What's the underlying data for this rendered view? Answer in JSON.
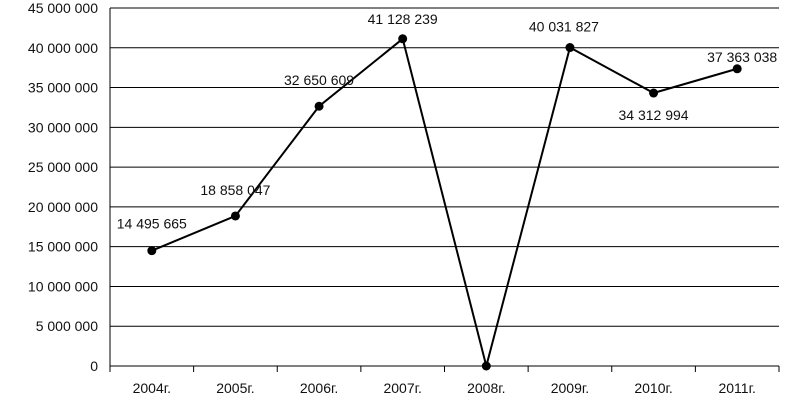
{
  "chart_data": {
    "type": "line",
    "categories": [
      "2004г.",
      "2005г.",
      "2006г.",
      "2007г.",
      "2008г.",
      "2009г.",
      "2010г.",
      "2011г."
    ],
    "values": [
      14495665,
      18858047,
      32650609,
      41128239,
      0,
      40031827,
      34312994,
      37363038
    ],
    "data_labels": [
      "14 495 665",
      "18 858 047",
      "32 650 609",
      "41 128 239",
      "",
      "40 031 827",
      "34 312 994",
      "37 363 038"
    ],
    "y_ticks": [
      0,
      5000000,
      10000000,
      15000000,
      20000000,
      25000000,
      30000000,
      35000000,
      40000000,
      45000000
    ],
    "y_tick_labels": [
      "0",
      "5 000 000",
      "10 000 000",
      "15 000 000",
      "20 000 000",
      "25 000 000",
      "30 000 000",
      "35 000 000",
      "40 000 000",
      "45 000 000"
    ],
    "ylim": [
      0,
      45000000
    ],
    "grid": true,
    "legend": "none",
    "colors": {
      "line": "#000000",
      "marker": "#000000",
      "grid": "#000000"
    }
  }
}
